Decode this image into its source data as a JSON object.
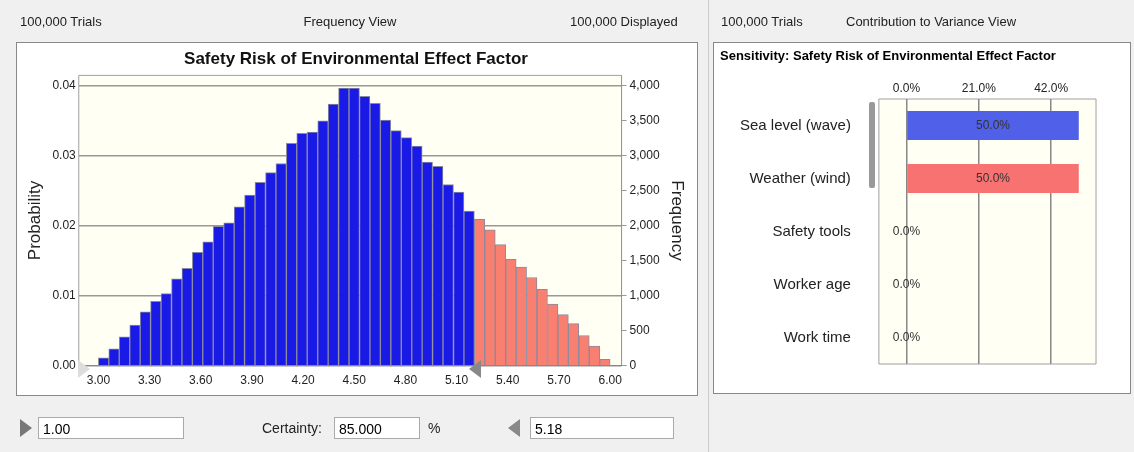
{
  "chart_data": [
    {
      "type": "histogram",
      "title": "Safety Risk of Environmental Effect Factor",
      "ylabel": "Probability",
      "y2label": "Frequency",
      "bins": [
        3,
        3.061,
        3.122,
        3.184,
        3.245,
        3.306,
        3.367,
        3.429,
        3.49,
        3.551,
        3.612,
        3.673,
        3.735,
        3.796,
        3.857,
        3.918,
        3.98,
        4.041,
        4.102,
        4.163,
        4.224,
        4.286,
        4.347,
        4.408,
        4.469,
        4.531,
        4.592,
        4.653,
        4.714,
        4.776,
        4.837,
        4.898,
        4.959,
        5.02,
        5.082,
        5.143,
        5.204,
        5.265,
        5.327,
        5.388,
        5.449,
        5.51,
        5.571,
        5.633,
        5.694,
        5.755,
        5.816,
        5.878,
        5.939,
        6
      ],
      "series": [
        {
          "color": "#1a1ae6",
          "axis": "y2",
          "values": [
            110,
            240,
            410,
            580,
            770,
            920,
            1030,
            1240,
            1390,
            1620,
            1770,
            1990,
            2040,
            2270,
            2440,
            2620,
            2760,
            2890,
            3180,
            3320,
            3340,
            3500,
            3740,
            3970,
            3970,
            3850,
            3750,
            3510,
            3360,
            3260,
            3140,
            2910,
            2850,
            2590,
            2480,
            2210,
            null,
            null,
            null,
            null,
            null,
            null,
            null,
            null,
            null,
            null,
            null,
            null,
            null
          ]
        },
        {
          "color": "#f98070",
          "axis": "y2",
          "values": [
            null,
            null,
            null,
            null,
            null,
            null,
            null,
            null,
            null,
            null,
            null,
            null,
            null,
            null,
            null,
            null,
            null,
            null,
            null,
            null,
            null,
            null,
            null,
            null,
            null,
            null,
            null,
            null,
            null,
            null,
            null,
            null,
            null,
            null,
            null,
            null,
            2090,
            1940,
            1730,
            1520,
            1410,
            1260,
            1090,
            880,
            730,
            600,
            430,
            280,
            90
          ]
        }
      ],
      "xlim": [
        2.885,
        6.067
      ],
      "xticks": [
        {
          "value": 3,
          "label": "3.00"
        },
        {
          "value": 3.3,
          "label": "3.30"
        },
        {
          "value": 3.6,
          "label": "3.60"
        },
        {
          "value": 3.9,
          "label": "3.90"
        },
        {
          "value": 4.2,
          "label": "4.20"
        },
        {
          "value": 4.5,
          "label": "4.50"
        },
        {
          "value": 4.8,
          "label": "4.80"
        },
        {
          "value": 5.1,
          "label": "5.10"
        },
        {
          "value": 5.4,
          "label": "5.40"
        },
        {
          "value": 5.7,
          "label": "5.70"
        },
        {
          "value": 6,
          "label": "6.00"
        }
      ],
      "ylim": [
        0,
        0.0415
      ],
      "yticks": [
        {
          "value": 0,
          "label": "0.00"
        },
        {
          "value": 0.01,
          "label": "0.01"
        },
        {
          "value": 0.02,
          "label": "0.02"
        },
        {
          "value": 0.03,
          "label": "0.03"
        },
        {
          "value": 0.04,
          "label": "0.04"
        }
      ],
      "y2lim": [
        0,
        4150
      ],
      "y2ticks": [
        0,
        500,
        {
          "value": 1000,
          "label": "1,000"
        },
        {
          "value": 1500,
          "label": "1,500"
        },
        {
          "value": 2000,
          "label": "2,000"
        },
        {
          "value": 2500,
          "label": "2,500"
        },
        {
          "value": 3000,
          "label": "3,000"
        },
        {
          "value": 3500,
          "label": "3,500"
        },
        {
          "value": 4000,
          "label": "4,000"
        }
      ],
      "grid": "y",
      "legend": false,
      "annotations": [
        "100,000 Trials",
        "Frequency View",
        "100,000 Displayed",
        "1.00",
        "Certainty:",
        "85.000",
        "%",
        "5.18"
      ]
    },
    {
      "type": "bar",
      "orientation": "horizontal",
      "title": "Sensitivity: Safety Risk of Environmental Effect Factor",
      "categories": [
        "Sea level (wave)",
        "Weather (wind)",
        "Safety tools",
        "Worker age",
        "Work time"
      ],
      "values": [
        50,
        50,
        0,
        0,
        0
      ],
      "colors": [
        "#5060e8",
        "#f87272",
        "#f87272",
        "#f87272",
        "#f87272"
      ],
      "value_labels": [
        "50.0%",
        "50.0%",
        "0.0%",
        "0.0%",
        "0.0%"
      ],
      "xlim": [
        -8,
        55
      ],
      "xticks": [
        {
          "value": 0,
          "label": "0.0%"
        },
        {
          "value": 21,
          "label": "21.0%"
        },
        {
          "value": 42,
          "label": "42.0%"
        }
      ],
      "grid": "x",
      "legend": false,
      "annotations": [
        "100,000 Trials",
        "Contribution to Variance View"
      ]
    }
  ]
}
